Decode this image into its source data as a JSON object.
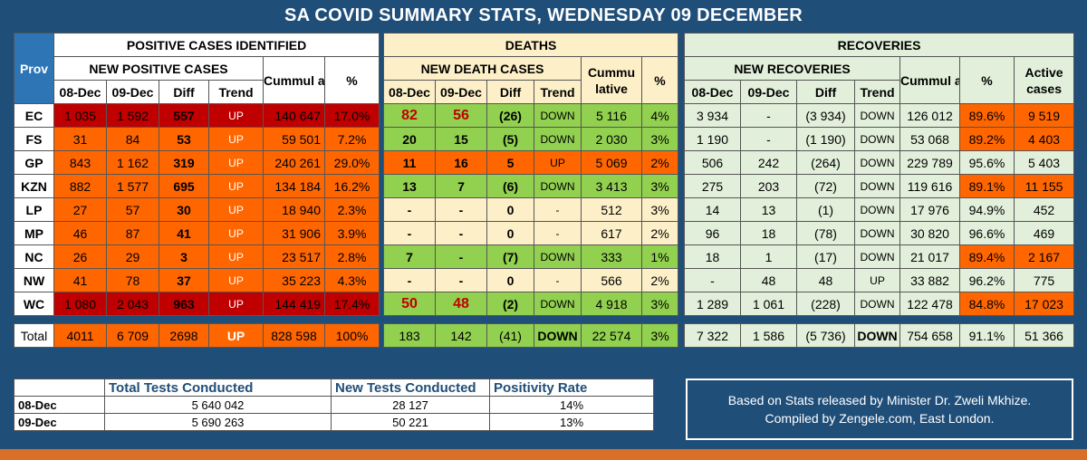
{
  "title": "SA COVID SUMMARY STATS, WEDNESDAY 09 DECEMBER",
  "colors": {
    "background": "#1f4e79",
    "dark_red": "#c00000",
    "orange": "#ff6600",
    "light_orange": "#ffb366",
    "green": "#92d050",
    "light_green": "#e2efda",
    "beige": "#fdf0c8",
    "accent_bar": "#d8702a"
  },
  "headers": {
    "prov": "Prov",
    "positive": "POSITIVE CASES IDENTIFIED",
    "new_positive": "NEW POSITIVE CASES",
    "deaths": "DEATHS",
    "new_deaths": "NEW DEATH CASES",
    "recoveries": "RECOVERIES",
    "new_recoveries": "NEW RECOVERIES",
    "cumm_a": "Cummul ative",
    "cumm_b": "Cummu lative",
    "cumm_c": "Cummul ative",
    "pct": "%",
    "active": "Active cases",
    "d1": "08-Dec",
    "d2": "09-Dec",
    "diff": "Diff",
    "trend": "Trend"
  },
  "rows": [
    {
      "prov": "EC",
      "c": [
        "1 035",
        "1 592",
        "557",
        "UP",
        "140 647",
        "17.0%"
      ],
      "d": [
        "82",
        "56",
        "(26)",
        "DOWN",
        "5 116",
        "4%"
      ],
      "r": [
        "3 934",
        "-",
        "(3 934)",
        "DOWN",
        "126 012",
        "89.6%",
        "9 519"
      ]
    },
    {
      "prov": "FS",
      "c": [
        "31",
        "84",
        "53",
        "UP",
        "59 501",
        "7.2%"
      ],
      "d": [
        "20",
        "15",
        "(5)",
        "DOWN",
        "2 030",
        "3%"
      ],
      "r": [
        "1 190",
        "-",
        "(1 190)",
        "DOWN",
        "53 068",
        "89.2%",
        "4 403"
      ]
    },
    {
      "prov": "GP",
      "c": [
        "843",
        "1 162",
        "319",
        "UP",
        "240 261",
        "29.0%"
      ],
      "d": [
        "11",
        "16",
        "5",
        "UP",
        "5 069",
        "2%"
      ],
      "r": [
        "506",
        "242",
        "(264)",
        "DOWN",
        "229 789",
        "95.6%",
        "5 403"
      ]
    },
    {
      "prov": "KZN",
      "c": [
        "882",
        "1 577",
        "695",
        "UP",
        "134 184",
        "16.2%"
      ],
      "d": [
        "13",
        "7",
        "(6)",
        "DOWN",
        "3 413",
        "3%"
      ],
      "r": [
        "275",
        "203",
        "(72)",
        "DOWN",
        "119 616",
        "89.1%",
        "11 155"
      ]
    },
    {
      "prov": "LP",
      "c": [
        "27",
        "57",
        "30",
        "UP",
        "18 940",
        "2.3%"
      ],
      "d": [
        "-",
        "-",
        "0",
        "-",
        "512",
        "3%"
      ],
      "r": [
        "14",
        "13",
        "(1)",
        "DOWN",
        "17 976",
        "94.9%",
        "452"
      ]
    },
    {
      "prov": "MP",
      "c": [
        "46",
        "87",
        "41",
        "UP",
        "31 906",
        "3.9%"
      ],
      "d": [
        "-",
        "-",
        "0",
        "-",
        "617",
        "2%"
      ],
      "r": [
        "96",
        "18",
        "(78)",
        "DOWN",
        "30 820",
        "96.6%",
        "469"
      ]
    },
    {
      "prov": "NC",
      "c": [
        "26",
        "29",
        "3",
        "UP",
        "23 517",
        "2.8%"
      ],
      "d": [
        "7",
        "-",
        "(7)",
        "DOWN",
        "333",
        "1%"
      ],
      "r": [
        "18",
        "1",
        "(17)",
        "DOWN",
        "21 017",
        "89.4%",
        "2 167"
      ]
    },
    {
      "prov": "NW",
      "c": [
        "41",
        "78",
        "37",
        "UP",
        "35 223",
        "4.3%"
      ],
      "d": [
        "-",
        "-",
        "0",
        "-",
        "566",
        "2%"
      ],
      "r": [
        "-",
        "48",
        "48",
        "UP",
        "33 882",
        "96.2%",
        "775"
      ]
    },
    {
      "prov": "WC",
      "c": [
        "1 080",
        "2 043",
        "963",
        "UP",
        "144 419",
        "17.4%"
      ],
      "d": [
        "50",
        "48",
        "(2)",
        "DOWN",
        "4 918",
        "3%"
      ],
      "r": [
        "1 289",
        "1 061",
        "(228)",
        "DOWN",
        "122 478",
        "84.8%",
        "17 023"
      ]
    }
  ],
  "total": {
    "prov": "Total",
    "c": [
      "4011",
      "6 709",
      "2698",
      "UP",
      "828 598",
      "100%"
    ],
    "d": [
      "183",
      "142",
      "(41)",
      "DOWN",
      "22 574",
      "3%"
    ],
    "r": [
      "7 322",
      "1 586",
      "(5 736)",
      "DOWN",
      "754 658",
      "91.1%",
      "51 366"
    ]
  },
  "tests": {
    "headers": [
      "Total Tests Conducted",
      "New Tests Conducted",
      "Positivity Rate"
    ],
    "rows": [
      {
        "date": "08-Dec",
        "total": "5 640 042",
        "new": "28 127",
        "rate": "14%"
      },
      {
        "date": "09-Dec",
        "total": "5 690 263",
        "new": "50 221",
        "rate": "13%"
      }
    ]
  },
  "note": {
    "line1": "Based on Stats released by Minister Dr. Zweli Mkhize.",
    "line2": "Compiled by Zengele.com, East London."
  }
}
